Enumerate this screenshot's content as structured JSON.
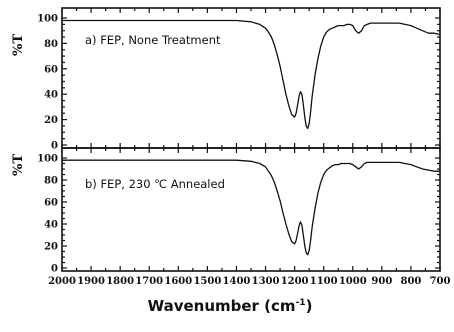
{
  "chart_data": [
    {
      "type": "line",
      "annotation": "a) FEP, None Treatment",
      "ylabel": "%T",
      "xlabel": "",
      "xlim": [
        2000,
        700
      ],
      "ylim": [
        0,
        100
      ],
      "yticks": [
        "0",
        "20",
        "40",
        "60",
        "80",
        "100"
      ],
      "xticks": [],
      "series": [
        {
          "x": [
            2000,
            1950,
            1900,
            1850,
            1800,
            1750,
            1700,
            1650,
            1600,
            1550,
            1500,
            1450,
            1400,
            1350,
            1320,
            1300,
            1290,
            1280,
            1270,
            1260,
            1250,
            1240,
            1230,
            1220,
            1210,
            1200,
            1195,
            1190,
            1185,
            1180,
            1175,
            1170,
            1165,
            1160,
            1155,
            1150,
            1145,
            1140,
            1130,
            1120,
            1110,
            1100,
            1090,
            1080,
            1070,
            1060,
            1050,
            1040,
            1030,
            1020,
            1010,
            1000,
            990,
            980,
            970,
            960,
            950,
            940,
            920,
            900,
            880,
            860,
            840,
            820,
            800,
            780,
            760,
            740,
            720,
            700
          ],
          "y": [
            98,
            98,
            98,
            98,
            98,
            98,
            98,
            98,
            98,
            98,
            98,
            98,
            98,
            97,
            95,
            92,
            89,
            85,
            79,
            71,
            62,
            51,
            40,
            31,
            24,
            22,
            25,
            31,
            38,
            42,
            40,
            32,
            22,
            15,
            13,
            17,
            26,
            38,
            55,
            68,
            78,
            85,
            89,
            91,
            92,
            93,
            94,
            94,
            94,
            95,
            95,
            94,
            90,
            88,
            90,
            94,
            95,
            96,
            96,
            96,
            96,
            96,
            96,
            95,
            94,
            92,
            90,
            88,
            88,
            87
          ]
        }
      ]
    },
    {
      "type": "line",
      "annotation": "b) FEP, 230 ℃ Annealed",
      "ylabel": "%T",
      "xlabel": "Wavenumber (cm",
      "xlabel_sup": "-1",
      "xlabel_end": ")",
      "xlim": [
        2000,
        700
      ],
      "ylim": [
        0,
        100
      ],
      "yticks": [
        "0",
        "20",
        "40",
        "60",
        "80",
        "100"
      ],
      "xticks": [
        "2000",
        "1900",
        "1800",
        "1700",
        "1600",
        "1500",
        "1400",
        "1300",
        "1200",
        "1100",
        "1000",
        "900",
        "800",
        "700"
      ],
      "series": [
        {
          "x": [
            2000,
            1950,
            1900,
            1850,
            1800,
            1750,
            1700,
            1650,
            1600,
            1550,
            1500,
            1450,
            1400,
            1350,
            1320,
            1300,
            1290,
            1280,
            1270,
            1260,
            1250,
            1240,
            1230,
            1220,
            1210,
            1200,
            1195,
            1190,
            1185,
            1180,
            1175,
            1170,
            1165,
            1160,
            1155,
            1150,
            1145,
            1140,
            1130,
            1120,
            1110,
            1100,
            1090,
            1080,
            1070,
            1060,
            1050,
            1040,
            1030,
            1020,
            1010,
            1000,
            990,
            980,
            970,
            960,
            950,
            940,
            920,
            900,
            880,
            860,
            840,
            820,
            800,
            780,
            760,
            740,
            720,
            700
          ],
          "y": [
            98,
            98,
            98,
            98,
            98,
            98,
            98,
            98,
            98,
            98,
            98,
            98,
            98,
            97,
            95,
            92,
            88,
            84,
            78,
            70,
            61,
            50,
            40,
            31,
            24,
            22,
            25,
            31,
            38,
            42,
            39,
            30,
            20,
            14,
            12,
            16,
            25,
            37,
            54,
            68,
            78,
            85,
            89,
            91,
            93,
            94,
            94,
            95,
            95,
            95,
            95,
            94,
            92,
            90,
            92,
            95,
            96,
            96,
            96,
            96,
            96,
            96,
            96,
            95,
            94,
            92,
            90,
            89,
            88,
            88
          ]
        }
      ]
    }
  ]
}
